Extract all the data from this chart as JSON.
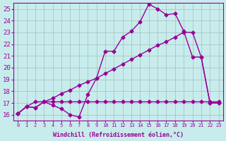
{
  "xlabel": "Windchill (Refroidissement éolien,°C)",
  "bg_color": "#c8ecec",
  "grid_color": "#9fbfbf",
  "line_color": "#990099",
  "xlim": [
    -0.5,
    23.5
  ],
  "ylim": [
    15.5,
    25.5
  ],
  "xticks": [
    0,
    1,
    2,
    3,
    4,
    5,
    6,
    7,
    8,
    9,
    10,
    11,
    12,
    13,
    14,
    15,
    16,
    17,
    18,
    19,
    20,
    21,
    22,
    23
  ],
  "yticks": [
    16,
    17,
    18,
    19,
    20,
    21,
    22,
    23,
    24,
    25
  ],
  "line1_x": [
    0,
    1,
    2,
    3,
    4,
    5,
    6,
    7,
    8,
    9,
    10,
    11,
    12,
    13,
    14,
    15,
    16,
    17,
    18,
    19,
    20,
    21,
    22,
    23
  ],
  "line1_y": [
    16.1,
    16.7,
    16.6,
    17.1,
    16.8,
    16.5,
    16.0,
    15.8,
    17.7,
    19.1,
    21.4,
    21.4,
    22.6,
    23.1,
    23.9,
    25.4,
    25.0,
    24.5,
    24.6,
    23.1,
    20.9,
    20.9,
    17.0,
    17.0
  ],
  "line2_x": [
    0,
    1,
    2,
    3,
    4,
    5,
    6,
    7,
    8,
    9,
    10,
    11,
    12,
    13,
    14,
    15,
    16,
    17,
    18,
    19,
    20,
    21,
    22,
    23
  ],
  "line2_y": [
    16.1,
    16.7,
    16.6,
    17.1,
    17.4,
    17.8,
    18.1,
    18.5,
    18.8,
    19.1,
    19.5,
    19.9,
    20.3,
    20.7,
    21.1,
    21.5,
    21.9,
    22.2,
    22.6,
    23.0,
    23.0,
    20.9,
    17.0,
    17.0
  ],
  "line3_x": [
    0,
    1,
    2,
    3,
    4,
    5,
    6,
    7,
    8,
    9,
    10,
    11,
    12,
    13,
    14,
    15,
    16,
    17,
    18,
    19,
    20,
    21,
    22,
    23
  ],
  "line3_y": [
    16.1,
    16.7,
    17.1,
    17.1,
    17.1,
    17.1,
    17.1,
    17.1,
    17.1,
    17.1,
    17.1,
    17.1,
    17.1,
    17.1,
    17.1,
    17.1,
    17.1,
    17.1,
    17.1,
    17.1,
    17.1,
    17.1,
    17.1,
    17.1
  ],
  "marker": "D",
  "markersize": 2.5,
  "linewidth": 1.0
}
